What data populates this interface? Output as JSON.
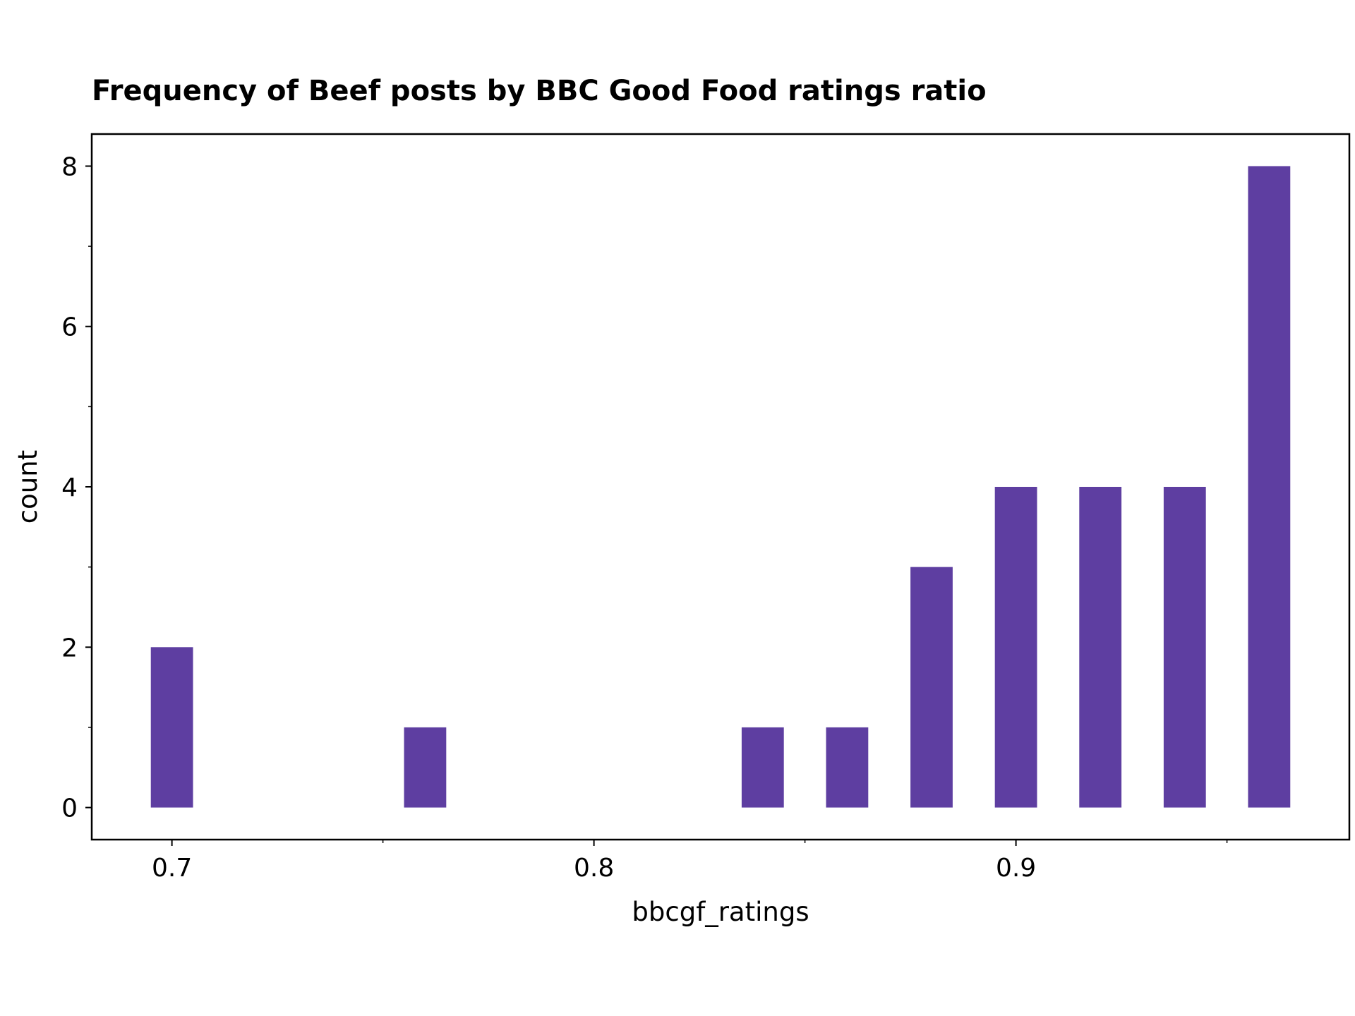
{
  "chart_data": {
    "type": "bar",
    "title": "Frequency of Beef posts by BBC Good Food ratings ratio",
    "xlabel": "bbcgf_ratings",
    "ylabel": "count",
    "bar_color": "#5e3ea1",
    "xlim": [
      0.681,
      0.979
    ],
    "ylim": [
      -0.4,
      8.4
    ],
    "x_ticks": [
      {
        "value": 0.7,
        "label": "0.7"
      },
      {
        "value": 0.8,
        "label": "0.8"
      },
      {
        "value": 0.9,
        "label": "0.9"
      }
    ],
    "x_minor_ticks": [
      0.75,
      0.85,
      0.95
    ],
    "y_ticks": [
      {
        "value": 0,
        "label": "0"
      },
      {
        "value": 2,
        "label": "2"
      },
      {
        "value": 4,
        "label": "4"
      },
      {
        "value": 6,
        "label": "6"
      },
      {
        "value": 8,
        "label": "8"
      }
    ],
    "y_minor_ticks": [
      1,
      3,
      5,
      7
    ],
    "bars": [
      {
        "x0": 0.695,
        "x1": 0.705,
        "count": 2
      },
      {
        "x0": 0.755,
        "x1": 0.765,
        "count": 1
      },
      {
        "x0": 0.835,
        "x1": 0.845,
        "count": 1
      },
      {
        "x0": 0.855,
        "x1": 0.865,
        "count": 1
      },
      {
        "x0": 0.875,
        "x1": 0.885,
        "count": 3
      },
      {
        "x0": 0.895,
        "x1": 0.905,
        "count": 4
      },
      {
        "x0": 0.915,
        "x1": 0.925,
        "count": 4
      },
      {
        "x0": 0.935,
        "x1": 0.945,
        "count": 4
      },
      {
        "x0": 0.955,
        "x1": 0.965,
        "count": 8
      }
    ],
    "grid": false,
    "legend": "none"
  }
}
